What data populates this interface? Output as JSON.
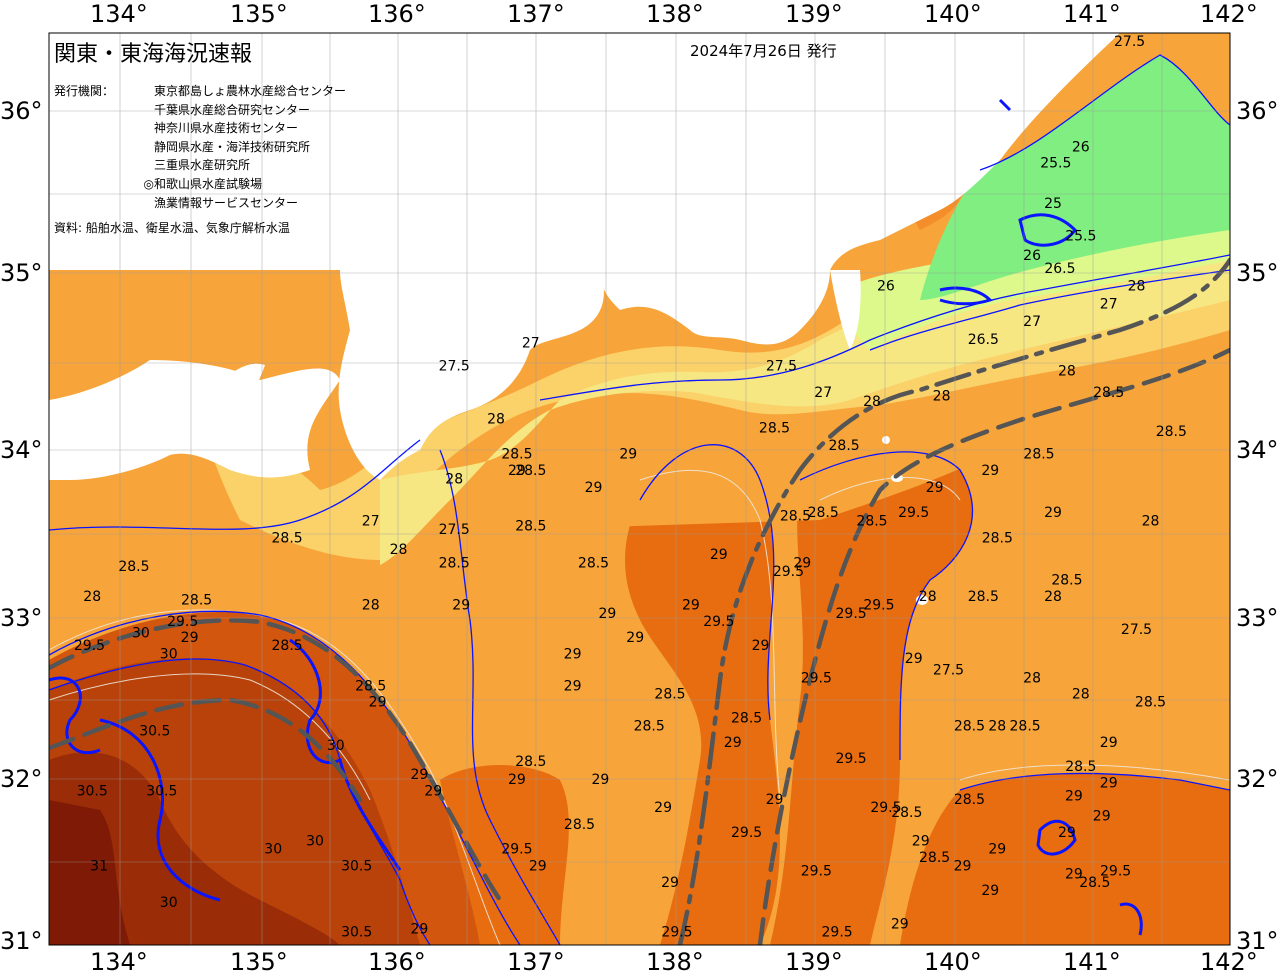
{
  "header": {
    "title": "関東・東海海況速報",
    "issue_date": "2024年7月26日 発行",
    "issuers_label": "発行機関：",
    "issuers": [
      {
        "mark": "",
        "name": "東京都島しょ農林水産総合センター"
      },
      {
        "mark": "",
        "name": "千葉県水産総合研究センター"
      },
      {
        "mark": "",
        "name": "神奈川県水産技術センター"
      },
      {
        "mark": "",
        "name": "静岡県水産・海洋技術研究所"
      },
      {
        "mark": "",
        "name": "三重県水産研究所"
      },
      {
        "mark": "◎",
        "name": "和歌山県水産試験場"
      },
      {
        "mark": "",
        "name": "漁業情報サービスセンター"
      }
    ],
    "sources": "資料: 船舶水温、衛星水温、気象庁解析水温"
  },
  "axes": {
    "longitude_ticks": [
      "134°",
      "135°",
      "136°",
      "137°",
      "138°",
      "139°",
      "140°",
      "141°",
      "142°"
    ],
    "latitude_ticks": [
      "36°",
      "35°",
      "34°",
      "33°",
      "32°",
      "31°"
    ]
  },
  "map_data": {
    "type": "sea-surface-temperature",
    "lon_range": [
      133.5,
      142
    ],
    "lat_range": [
      31,
      36.5
    ],
    "colors": {
      "t26_26_5": "#80ee80",
      "t26_5_27": "#ddf98c",
      "t27_27_5": "#f6e783",
      "t27_5_28": "#fbd26a",
      "t28_28_5": "#f7a53a",
      "t28_5_29": "#f48e2a",
      "t29_29_5": "#e86d10",
      "t29_5_30": "#d2560e",
      "t30_30_5": "#b8420a",
      "t30_5_31": "#9a2c07",
      "t31_plus": "#7e1a05",
      "land": "#ffffff",
      "isotherm_major": "#0a14ff",
      "isotherm_minor": "#e9e9e9",
      "kuroshio_path": "#555555"
    },
    "isotherm_labels": [
      {
        "lon": 141.25,
        "lat": 36.4,
        "t": "27.5"
      },
      {
        "lon": 140.9,
        "lat": 35.75,
        "t": "26"
      },
      {
        "lon": 140.72,
        "lat": 35.65,
        "t": "25.5"
      },
      {
        "lon": 140.7,
        "lat": 35.4,
        "t": "25"
      },
      {
        "lon": 140.9,
        "lat": 35.2,
        "t": "25.5"
      },
      {
        "lon": 140.55,
        "lat": 35.08,
        "t": "26"
      },
      {
        "lon": 140.75,
        "lat": 35.0,
        "t": "26.5"
      },
      {
        "lon": 139.5,
        "lat": 34.9,
        "t": "26"
      },
      {
        "lon": 141.1,
        "lat": 34.8,
        "t": "27"
      },
      {
        "lon": 141.3,
        "lat": 34.9,
        "t": "28"
      },
      {
        "lon": 140.55,
        "lat": 34.7,
        "t": "27"
      },
      {
        "lon": 140.2,
        "lat": 34.6,
        "t": "26.5"
      },
      {
        "lon": 140.8,
        "lat": 34.42,
        "t": "28"
      },
      {
        "lon": 141.1,
        "lat": 34.3,
        "t": "28.5"
      },
      {
        "lon": 136.95,
        "lat": 34.58,
        "t": "27"
      },
      {
        "lon": 136.4,
        "lat": 34.45,
        "t": "27.5"
      },
      {
        "lon": 138.75,
        "lat": 34.45,
        "t": "27.5"
      },
      {
        "lon": 139.05,
        "lat": 34.3,
        "t": "27"
      },
      {
        "lon": 139.4,
        "lat": 34.25,
        "t": "28"
      },
      {
        "lon": 139.9,
        "lat": 34.28,
        "t": "28"
      },
      {
        "lon": 136.7,
        "lat": 34.15,
        "t": "28"
      },
      {
        "lon": 138.7,
        "lat": 34.1,
        "t": "28.5"
      },
      {
        "lon": 139.2,
        "lat": 34.0,
        "t": "28.5"
      },
      {
        "lon": 140.6,
        "lat": 33.95,
        "t": "28.5"
      },
      {
        "lon": 141.55,
        "lat": 34.08,
        "t": "28.5"
      },
      {
        "lon": 136.85,
        "lat": 33.95,
        "t": "28.5"
      },
      {
        "lon": 137.65,
        "lat": 33.95,
        "t": "29"
      },
      {
        "lon": 136.95,
        "lat": 33.85,
        "t": "28.5"
      },
      {
        "lon": 136.85,
        "lat": 33.85,
        "t": "29"
      },
      {
        "lon": 136.4,
        "lat": 33.8,
        "t": "28"
      },
      {
        "lon": 137.4,
        "lat": 33.75,
        "t": "29"
      },
      {
        "lon": 139.85,
        "lat": 33.75,
        "t": "29"
      },
      {
        "lon": 140.25,
        "lat": 33.85,
        "t": "29"
      },
      {
        "lon": 139.7,
        "lat": 33.6,
        "t": "29.5"
      },
      {
        "lon": 138.85,
        "lat": 33.58,
        "t": "28.5"
      },
      {
        "lon": 139.05,
        "lat": 33.6,
        "t": "28.5"
      },
      {
        "lon": 139.4,
        "lat": 33.55,
        "t": "28.5"
      },
      {
        "lon": 140.3,
        "lat": 33.45,
        "t": "28.5"
      },
      {
        "lon": 140.7,
        "lat": 33.6,
        "t": "29"
      },
      {
        "lon": 141.4,
        "lat": 33.55,
        "t": "28"
      },
      {
        "lon": 135.2,
        "lat": 33.45,
        "t": "28.5"
      },
      {
        "lon": 136.0,
        "lat": 33.38,
        "t": "28"
      },
      {
        "lon": 135.8,
        "lat": 33.55,
        "t": "27"
      },
      {
        "lon": 136.4,
        "lat": 33.5,
        "t": "27.5"
      },
      {
        "lon": 136.95,
        "lat": 33.52,
        "t": "28.5"
      },
      {
        "lon": 136.4,
        "lat": 33.3,
        "t": "28.5"
      },
      {
        "lon": 137.4,
        "lat": 33.3,
        "t": "28.5"
      },
      {
        "lon": 138.3,
        "lat": 33.35,
        "t": "29"
      },
      {
        "lon": 138.8,
        "lat": 33.25,
        "t": "29.5"
      },
      {
        "lon": 138.9,
        "lat": 33.3,
        "t": "29"
      },
      {
        "lon": 140.8,
        "lat": 33.2,
        "t": "28.5"
      },
      {
        "lon": 134.1,
        "lat": 33.28,
        "t": "28.5"
      },
      {
        "lon": 135.8,
        "lat": 33.05,
        "t": "28"
      },
      {
        "lon": 136.45,
        "lat": 33.05,
        "t": "29"
      },
      {
        "lon": 133.8,
        "lat": 33.1,
        "t": "28"
      },
      {
        "lon": 134.55,
        "lat": 33.08,
        "t": "28.5"
      },
      {
        "lon": 139.45,
        "lat": 33.05,
        "t": "29.5"
      },
      {
        "lon": 139.8,
        "lat": 33.1,
        "t": "28"
      },
      {
        "lon": 140.2,
        "lat": 33.1,
        "t": "28.5"
      },
      {
        "lon": 140.7,
        "lat": 33.1,
        "t": "28"
      },
      {
        "lon": 139.25,
        "lat": 33.0,
        "t": "29.5"
      },
      {
        "lon": 137.5,
        "lat": 33.0,
        "t": "29"
      },
      {
        "lon": 138.1,
        "lat": 33.05,
        "t": "29"
      },
      {
        "lon": 138.3,
        "lat": 32.95,
        "t": "29.5"
      },
      {
        "lon": 141.3,
        "lat": 32.9,
        "t": "27.5"
      },
      {
        "lon": 134.15,
        "lat": 32.88,
        "t": "30"
      },
      {
        "lon": 134.45,
        "lat": 32.95,
        "t": "29.5"
      },
      {
        "lon": 134.5,
        "lat": 32.85,
        "t": "29"
      },
      {
        "lon": 133.78,
        "lat": 32.8,
        "t": "29.5"
      },
      {
        "lon": 134.35,
        "lat": 32.75,
        "t": "30"
      },
      {
        "lon": 135.2,
        "lat": 32.8,
        "t": "28.5"
      },
      {
        "lon": 137.25,
        "lat": 32.75,
        "t": "29"
      },
      {
        "lon": 137.7,
        "lat": 32.85,
        "t": "29"
      },
      {
        "lon": 138.6,
        "lat": 32.8,
        "t": "29"
      },
      {
        "lon": 139.7,
        "lat": 32.72,
        "t": "29"
      },
      {
        "lon": 139.95,
        "lat": 32.65,
        "t": "27.5"
      },
      {
        "lon": 140.55,
        "lat": 32.6,
        "t": "28"
      },
      {
        "lon": 140.9,
        "lat": 32.5,
        "t": "28"
      },
      {
        "lon": 135.8,
        "lat": 32.55,
        "t": "28.5"
      },
      {
        "lon": 135.85,
        "lat": 32.45,
        "t": "29"
      },
      {
        "lon": 137.25,
        "lat": 32.55,
        "t": "29"
      },
      {
        "lon": 137.95,
        "lat": 32.5,
        "t": "28.5"
      },
      {
        "lon": 138.5,
        "lat": 32.35,
        "t": "28.5"
      },
      {
        "lon": 139.0,
        "lat": 32.6,
        "t": "29.5"
      },
      {
        "lon": 141.4,
        "lat": 32.45,
        "t": "28.5"
      },
      {
        "lon": 137.8,
        "lat": 32.3,
        "t": "28.5"
      },
      {
        "lon": 138.4,
        "lat": 32.2,
        "t": "29"
      },
      {
        "lon": 140.1,
        "lat": 32.3,
        "t": "28.5"
      },
      {
        "lon": 140.3,
        "lat": 32.3,
        "t": "28"
      },
      {
        "lon": 140.5,
        "lat": 32.3,
        "t": "28.5"
      },
      {
        "lon": 134.25,
        "lat": 32.27,
        "t": "30.5"
      },
      {
        "lon": 135.55,
        "lat": 32.18,
        "t": "30"
      },
      {
        "lon": 136.95,
        "lat": 32.08,
        "t": "28.5"
      },
      {
        "lon": 140.9,
        "lat": 32.05,
        "t": "28.5"
      },
      {
        "lon": 141.1,
        "lat": 32.2,
        "t": "29"
      },
      {
        "lon": 139.25,
        "lat": 32.1,
        "t": "29.5"
      },
      {
        "lon": 136.15,
        "lat": 32.0,
        "t": "29"
      },
      {
        "lon": 136.25,
        "lat": 31.9,
        "t": "29"
      },
      {
        "lon": 136.85,
        "lat": 31.97,
        "t": "29"
      },
      {
        "lon": 137.45,
        "lat": 31.97,
        "t": "29"
      },
      {
        "lon": 138.7,
        "lat": 31.85,
        "t": "29"
      },
      {
        "lon": 133.8,
        "lat": 31.9,
        "t": "30.5"
      },
      {
        "lon": 134.3,
        "lat": 31.9,
        "t": "30.5"
      },
      {
        "lon": 137.9,
        "lat": 31.8,
        "t": "29"
      },
      {
        "lon": 140.1,
        "lat": 31.85,
        "t": "28.5"
      },
      {
        "lon": 140.85,
        "lat": 31.87,
        "t": "29"
      },
      {
        "lon": 139.5,
        "lat": 31.8,
        "t": "29.5"
      },
      {
        "lon": 139.65,
        "lat": 31.77,
        "t": "28.5"
      },
      {
        "lon": 141.1,
        "lat": 31.95,
        "t": "29"
      },
      {
        "lon": 141.05,
        "lat": 31.75,
        "t": "29"
      },
      {
        "lon": 137.3,
        "lat": 31.7,
        "t": "28.5"
      },
      {
        "lon": 138.5,
        "lat": 31.65,
        "t": "29.5"
      },
      {
        "lon": 140.8,
        "lat": 31.65,
        "t": "29"
      },
      {
        "lon": 139.75,
        "lat": 31.6,
        "t": "29"
      },
      {
        "lon": 139.85,
        "lat": 31.5,
        "t": "28.5"
      },
      {
        "lon": 136.85,
        "lat": 31.55,
        "t": "29.5"
      },
      {
        "lon": 140.3,
        "lat": 31.55,
        "t": "29"
      },
      {
        "lon": 135.1,
        "lat": 31.55,
        "t": "30"
      },
      {
        "lon": 135.7,
        "lat": 31.45,
        "t": "30.5"
      },
      {
        "lon": 135.4,
        "lat": 31.6,
        "t": "30"
      },
      {
        "lon": 133.85,
        "lat": 31.45,
        "t": "31"
      },
      {
        "lon": 137.0,
        "lat": 31.45,
        "t": "29"
      },
      {
        "lon": 139.0,
        "lat": 31.42,
        "t": "29.5"
      },
      {
        "lon": 140.05,
        "lat": 31.45,
        "t": "29"
      },
      {
        "lon": 140.85,
        "lat": 31.4,
        "t": "29"
      },
      {
        "lon": 141.15,
        "lat": 31.42,
        "t": "29.5"
      },
      {
        "lon": 141.0,
        "lat": 31.35,
        "t": "28.5"
      },
      {
        "lon": 137.95,
        "lat": 31.35,
        "t": "29"
      },
      {
        "lon": 140.25,
        "lat": 31.3,
        "t": "29"
      },
      {
        "lon": 134.35,
        "lat": 31.23,
        "t": "30"
      },
      {
        "lon": 135.7,
        "lat": 31.05,
        "t": "30.5"
      },
      {
        "lon": 136.15,
        "lat": 31.07,
        "t": "29"
      },
      {
        "lon": 139.15,
        "lat": 31.05,
        "t": "29.5"
      },
      {
        "lon": 139.6,
        "lat": 31.1,
        "t": "29"
      },
      {
        "lon": 138.0,
        "lat": 31.05,
        "t": "29.5"
      }
    ]
  }
}
